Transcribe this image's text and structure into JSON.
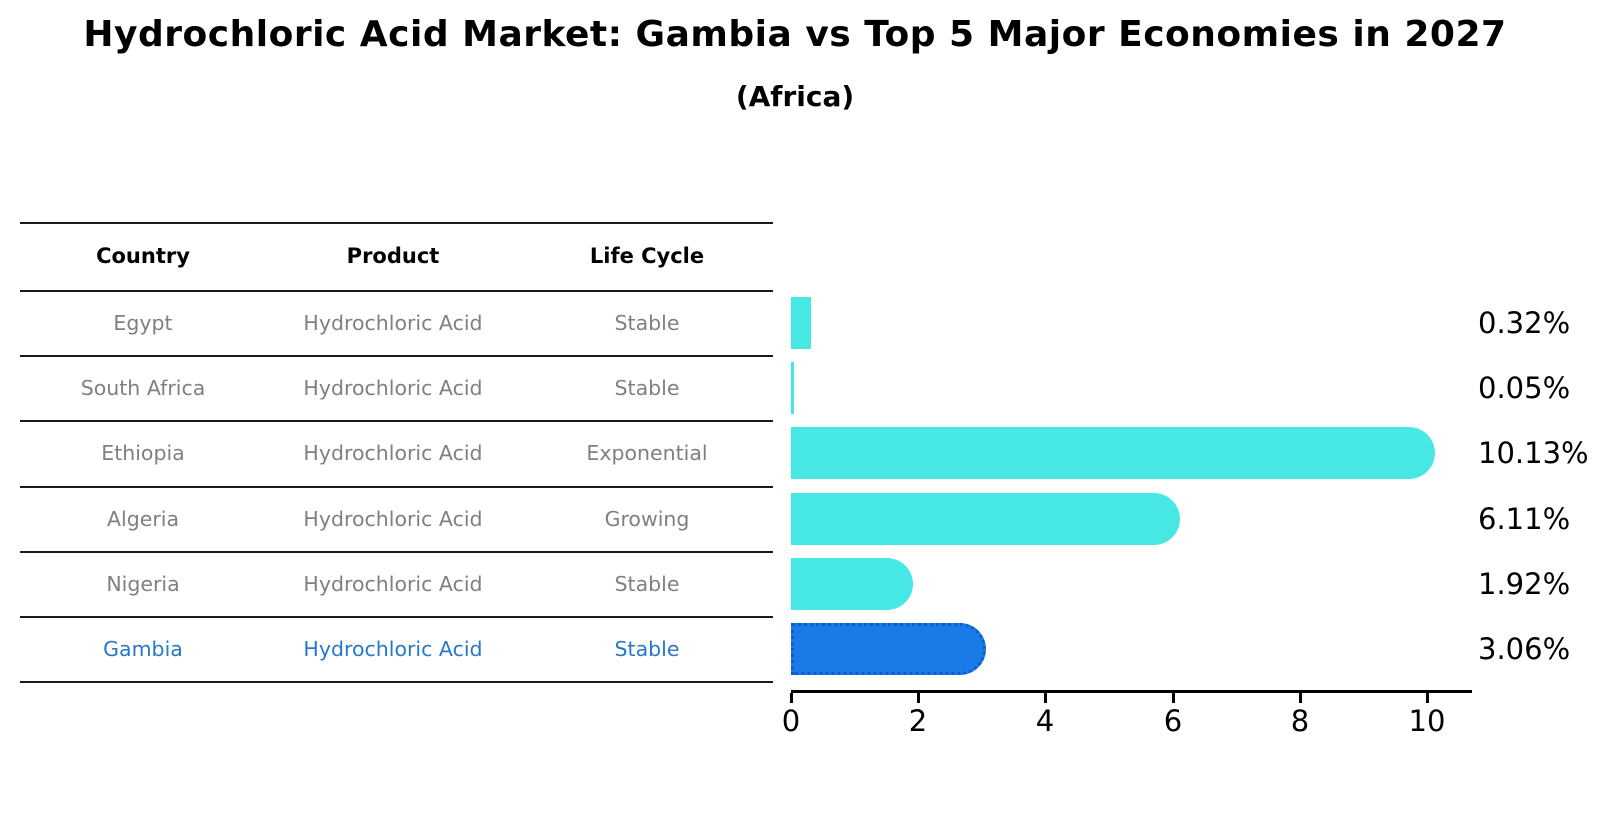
{
  "title": "Hydrochloric Acid Market: Gambia vs Top 5 Major Economies in 2027",
  "subtitle": "(Africa)",
  "table": {
    "headers": [
      "Country",
      "Product",
      "Life Cycle"
    ],
    "rows": [
      {
        "country": "Egypt",
        "product": "Hydrochloric Acid",
        "life_cycle": "Stable",
        "share_label": "0.32%"
      },
      {
        "country": "South Africa",
        "product": "Hydrochloric Acid",
        "life_cycle": "Stable",
        "share_label": "0.05%"
      },
      {
        "country": "Ethiopia",
        "product": "Hydrochloric Acid",
        "life_cycle": "Exponential",
        "share_label": "10.13%"
      },
      {
        "country": "Algeria",
        "product": "Hydrochloric Acid",
        "life_cycle": "Growing",
        "share_label": "6.11%"
      },
      {
        "country": "Nigeria",
        "product": "Hydrochloric Acid",
        "life_cycle": "Stable",
        "share_label": "1.92%"
      },
      {
        "country": "Gambia",
        "product": "Hydrochloric Acid",
        "life_cycle": "Stable",
        "share_label": "3.06%"
      }
    ]
  },
  "chart_data": {
    "type": "bar",
    "orientation": "horizontal",
    "title": "Hydrochloric Acid Market: Gambia vs Top 5 Major Economies in 2027",
    "subtitle": "(Africa)",
    "categories": [
      "Egypt",
      "South Africa",
      "Ethiopia",
      "Algeria",
      "Nigeria",
      "Gambia"
    ],
    "values": [
      0.32,
      0.05,
      10.13,
      6.11,
      1.92,
      3.06
    ],
    "value_labels": [
      "0.32%",
      "0.05%",
      "10.13%",
      "6.11%",
      "1.92%",
      "3.06%"
    ],
    "xticks": [
      0,
      2,
      4,
      6,
      8,
      10
    ],
    "xlim": [
      0,
      10.7
    ],
    "ylabel": "",
    "xlabel": "",
    "grid": false,
    "legend": false,
    "bar_color": "#47e8e4",
    "highlight_color": "#1a7ae8",
    "highlight_index": 5,
    "highlight_category": "Gambia"
  },
  "colors": {
    "bar_cyan": "#47e8e4",
    "bar_blue": "#1a7ae8",
    "table_text": "#808080",
    "highlight_text": "#2878c8",
    "line": "#1a1a1a"
  }
}
